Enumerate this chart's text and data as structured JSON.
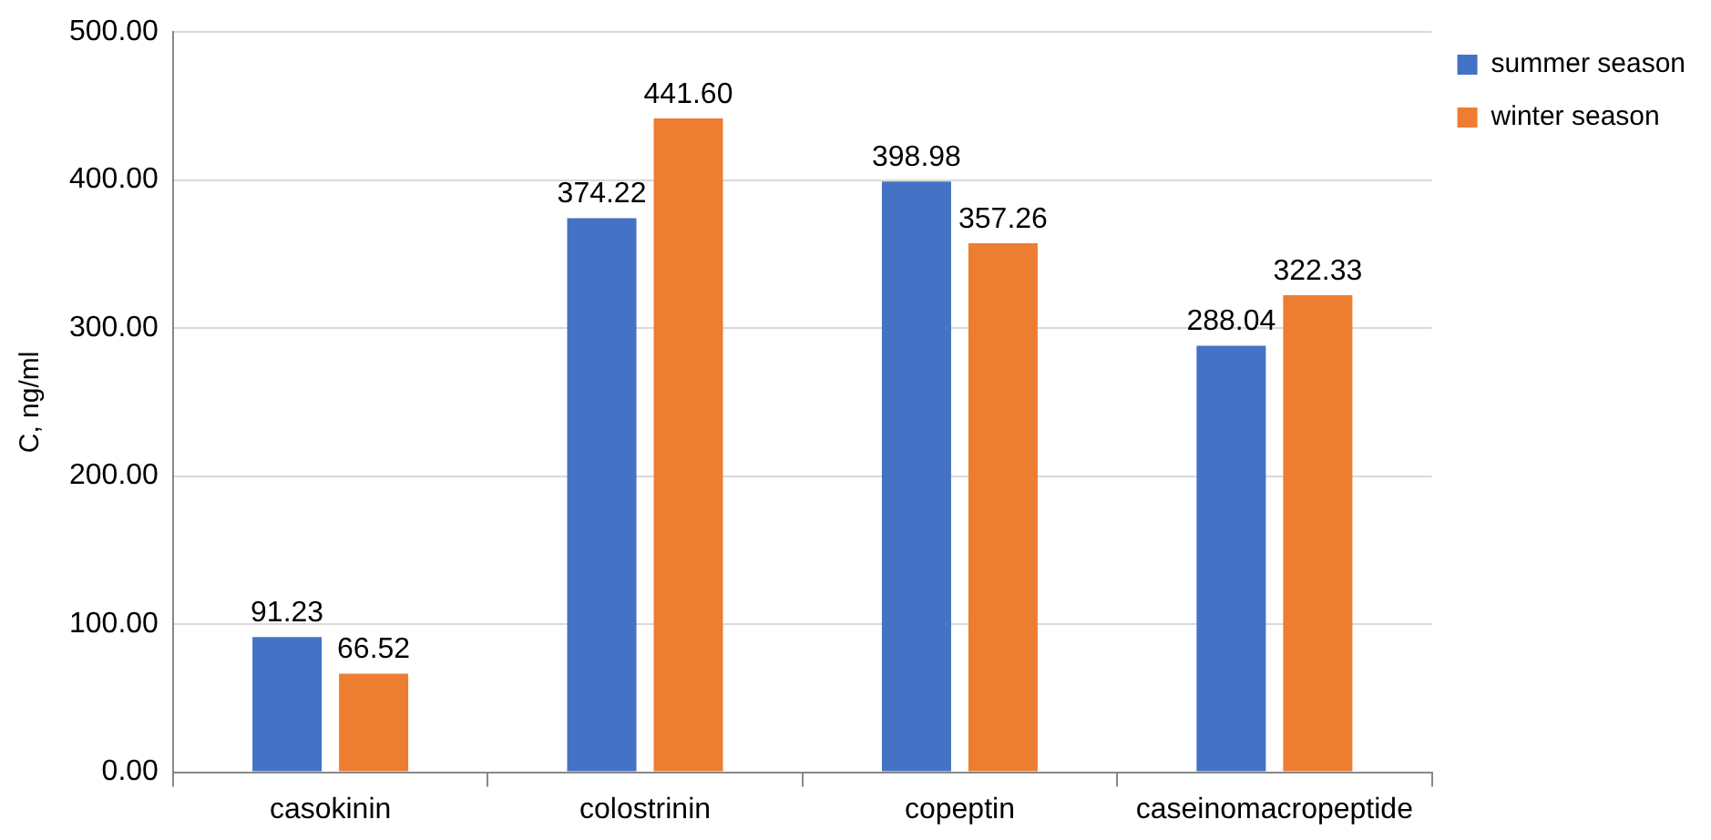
{
  "chart_data": {
    "type": "bar",
    "ylabel": "C, ng/ml",
    "categories": [
      "casokinin",
      "colostrinin",
      "copeptin",
      "caseinomacropeptide"
    ],
    "series": [
      {
        "name": "summer season",
        "color": "#4472c4",
        "values": [
          91.23,
          374.22,
          398.98,
          288.04
        ],
        "value_labels": [
          "91.23",
          "374.22",
          "398.98",
          "288.04"
        ]
      },
      {
        "name": "winter season",
        "color": "#ed7d31",
        "values": [
          66.52,
          441.6,
          357.26,
          322.33
        ],
        "value_labels": [
          "66.52",
          "441.60",
          "357.26",
          "322.33"
        ]
      }
    ],
    "ylim": [
      0,
      500
    ],
    "yticks": [
      {
        "value": 0,
        "label": "0.00"
      },
      {
        "value": 100,
        "label": "100.00"
      },
      {
        "value": 200,
        "label": "200.00"
      },
      {
        "value": 300,
        "label": "300.00"
      },
      {
        "value": 400,
        "label": "400.00"
      },
      {
        "value": 500,
        "label": "500.00"
      }
    ],
    "grid": "y",
    "legend": "top right"
  }
}
